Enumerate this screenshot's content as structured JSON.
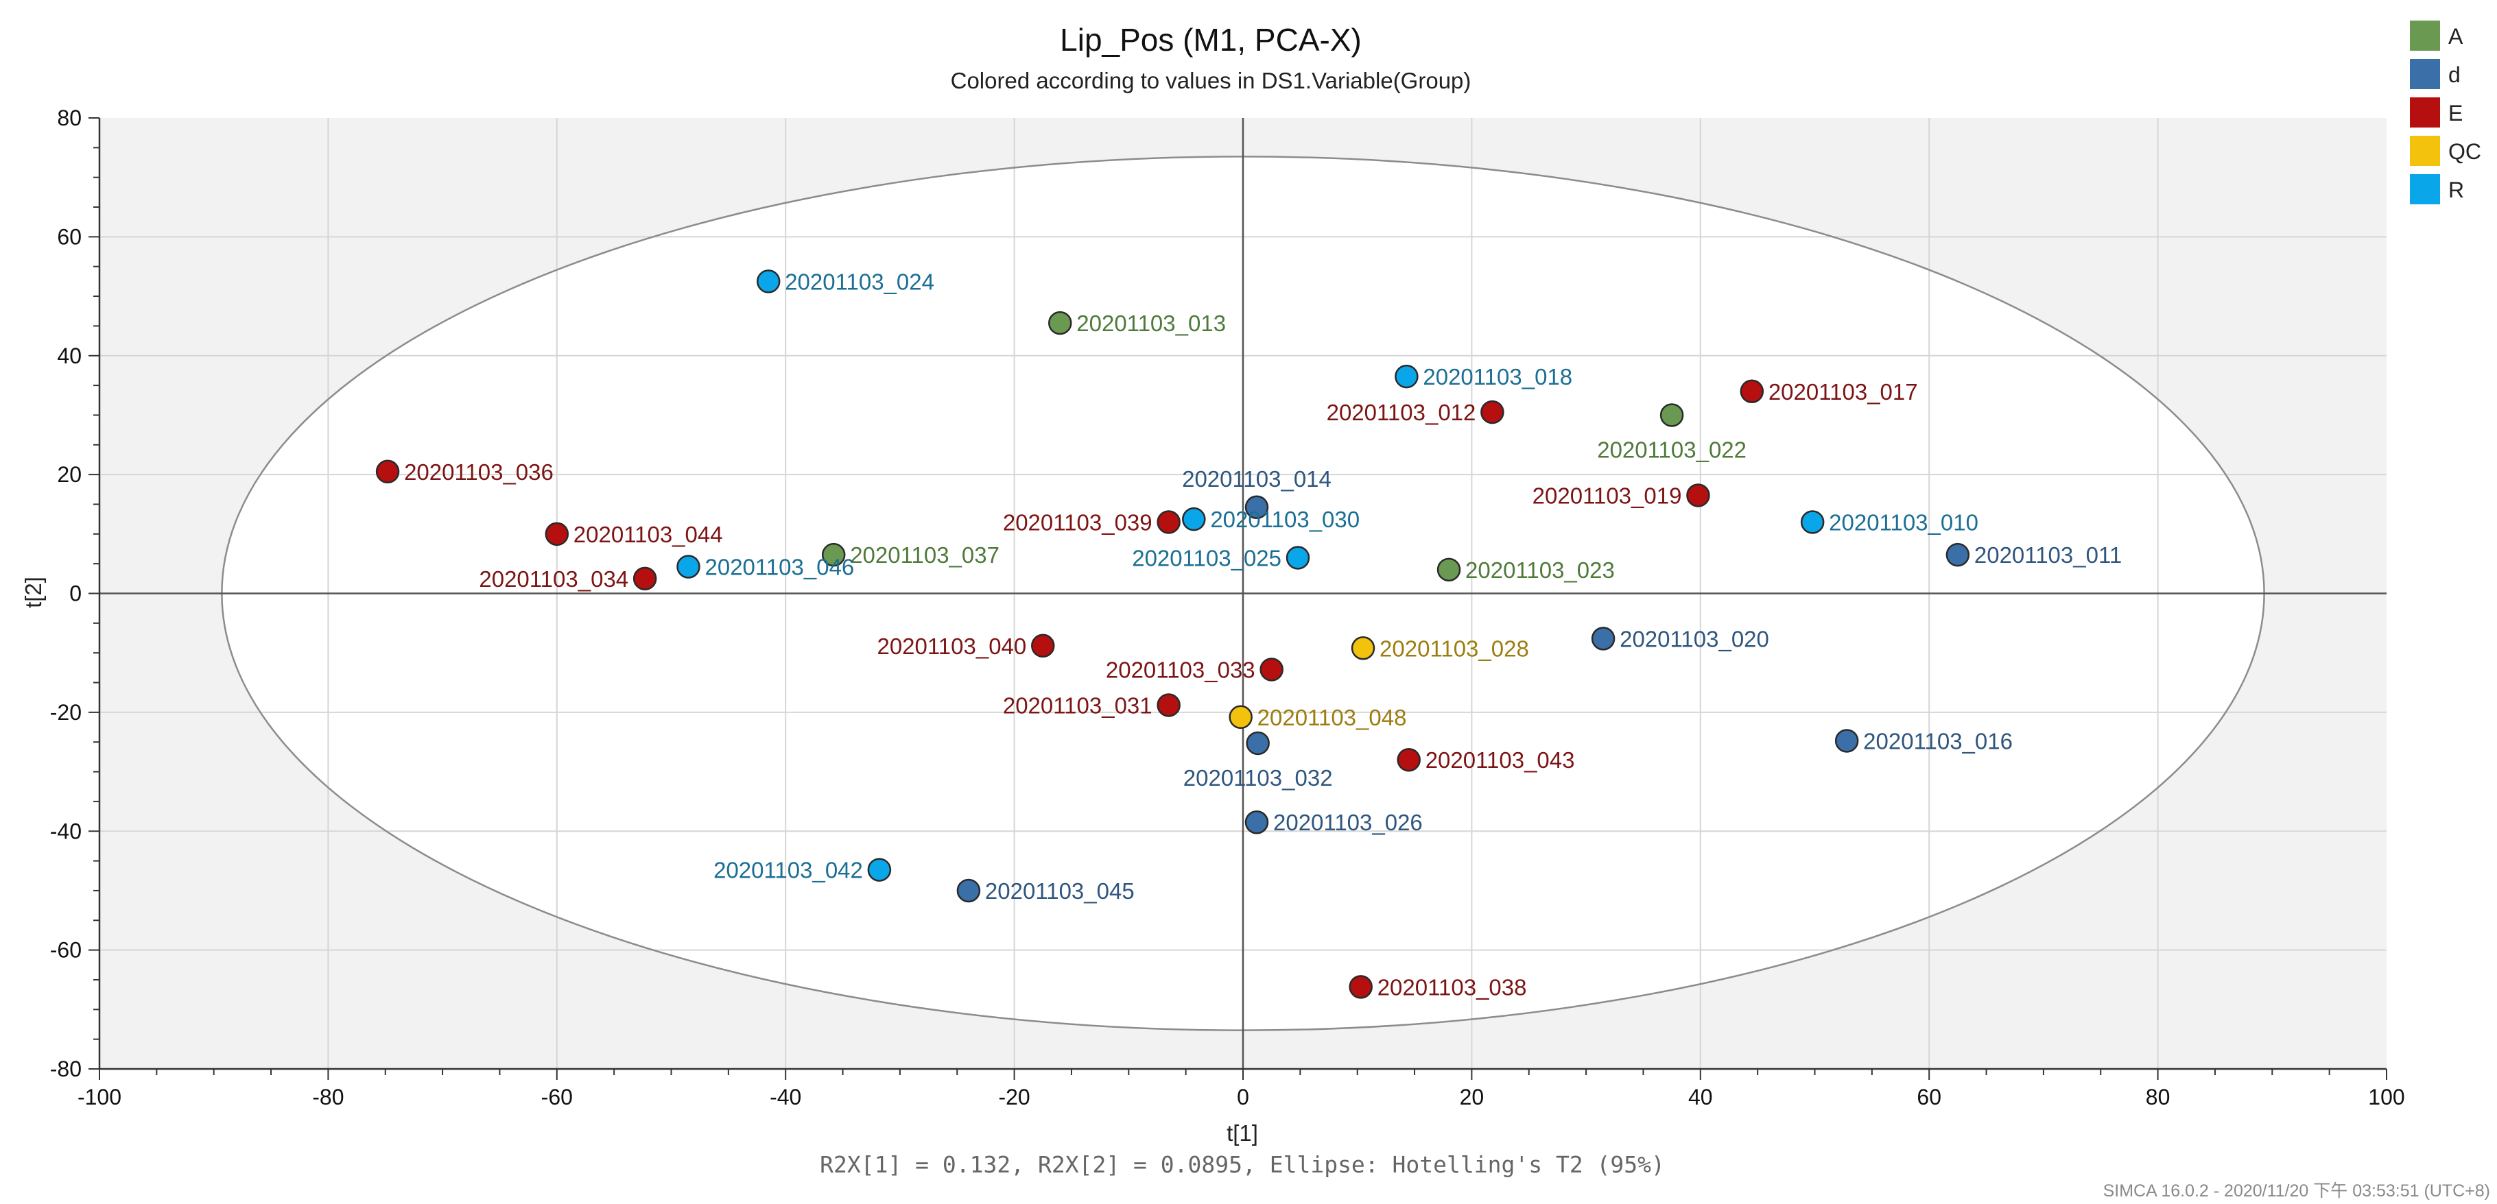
{
  "chart_data": {
    "type": "scatter",
    "title": "Lip_Pos (M1, PCA-X)",
    "subtitle": "Colored according to values in DS1.Variable(Group)",
    "xlabel": "t[1]",
    "ylabel": "t[2]",
    "xlim": [
      -100,
      100
    ],
    "ylim": [
      -80,
      80
    ],
    "xticks": [
      -100,
      -80,
      -60,
      -40,
      -20,
      0,
      20,
      40,
      60,
      80,
      100
    ],
    "yticks": [
      -80,
      -60,
      -40,
      -20,
      0,
      20,
      40,
      60,
      80
    ],
    "grid": true,
    "legend_position": "top-right",
    "ellipse": {
      "a": 89.3,
      "b": 73.5
    },
    "groups": [
      {
        "name": "A",
        "color": "#6a9a52",
        "text_color": "#4e7a3a"
      },
      {
        "name": "d",
        "color": "#3a6fa8",
        "text_color": "#2f567e"
      },
      {
        "name": "E",
        "color": "#b50f0f",
        "text_color": "#7d1414"
      },
      {
        "name": "QC",
        "color": "#f3c20c",
        "text_color": "#9c7d10"
      },
      {
        "name": "R",
        "color": "#0aa6ea",
        "text_color": "#1b6f94"
      }
    ],
    "points": [
      {
        "label": "20201103_024",
        "group": "R",
        "x": -41.5,
        "y": 52.5,
        "label_pos": "right"
      },
      {
        "label": "20201103_013",
        "group": "A",
        "x": -16.0,
        "y": 45.5,
        "label_pos": "right"
      },
      {
        "label": "20201103_018",
        "group": "R",
        "x": 14.3,
        "y": 36.5,
        "label_pos": "right"
      },
      {
        "label": "20201103_012",
        "group": "E",
        "x": 21.8,
        "y": 30.5,
        "label_pos": "left"
      },
      {
        "label": "20201103_022",
        "group": "A",
        "x": 37.5,
        "y": 30.0,
        "label_pos": "below"
      },
      {
        "label": "20201103_017",
        "group": "E",
        "x": 44.5,
        "y": 34.0,
        "label_pos": "right"
      },
      {
        "label": "20201103_036",
        "group": "E",
        "x": -74.8,
        "y": 20.5,
        "label_pos": "right"
      },
      {
        "label": "20201103_014",
        "group": "d",
        "x": 1.2,
        "y": 14.5,
        "label_pos": "above"
      },
      {
        "label": "20201103_019",
        "group": "E",
        "x": 39.8,
        "y": 16.5,
        "label_pos": "left"
      },
      {
        "label": "20201103_010",
        "group": "R",
        "x": 49.8,
        "y": 12.0,
        "label_pos": "right"
      },
      {
        "label": "20201103_044",
        "group": "E",
        "x": -60.0,
        "y": 10.0,
        "label_pos": "right"
      },
      {
        "label": "20201103_039",
        "group": "E",
        "x": -6.5,
        "y": 12.0,
        "label_pos": "left"
      },
      {
        "label": "20201103_030",
        "group": "R",
        "x": -4.3,
        "y": 12.5,
        "label_pos": "right"
      },
      {
        "label": "20201103_011",
        "group": "d",
        "x": 62.5,
        "y": 6.5,
        "label_pos": "right"
      },
      {
        "label": "20201103_037",
        "group": "A",
        "x": -35.8,
        "y": 6.5,
        "label_pos": "right"
      },
      {
        "label": "20201103_025",
        "group": "R",
        "x": 4.8,
        "y": 6.0,
        "label_pos": "left"
      },
      {
        "label": "20201103_046",
        "group": "R",
        "x": -48.5,
        "y": 4.5,
        "label_pos": "right"
      },
      {
        "label": "20201103_034",
        "group": "E",
        "x": -52.3,
        "y": 2.5,
        "label_pos": "left"
      },
      {
        "label": "20201103_023",
        "group": "A",
        "x": 18.0,
        "y": 4.0,
        "label_pos": "right"
      },
      {
        "label": "20201103_040",
        "group": "E",
        "x": -17.5,
        "y": -8.8,
        "label_pos": "left"
      },
      {
        "label": "20201103_028",
        "group": "QC",
        "x": 10.5,
        "y": -9.2,
        "label_pos": "right"
      },
      {
        "label": "20201103_020",
        "group": "d",
        "x": 31.5,
        "y": -7.6,
        "label_pos": "right"
      },
      {
        "label": "20201103_033",
        "group": "E",
        "x": 2.5,
        "y": -12.8,
        "label_pos": "left"
      },
      {
        "label": "20201103_031",
        "group": "E",
        "x": -6.5,
        "y": -18.8,
        "label_pos": "left"
      },
      {
        "label": "20201103_048",
        "group": "QC",
        "x": -0.2,
        "y": -20.8,
        "label_pos": "right"
      },
      {
        "label": "20201103_032",
        "group": "d",
        "x": 1.3,
        "y": -25.2,
        "label_pos": "below"
      },
      {
        "label": "20201103_016",
        "group": "d",
        "x": 52.8,
        "y": -24.8,
        "label_pos": "right"
      },
      {
        "label": "20201103_043",
        "group": "E",
        "x": 14.5,
        "y": -28.0,
        "label_pos": "right"
      },
      {
        "label": "20201103_026",
        "group": "d",
        "x": 1.2,
        "y": -38.5,
        "label_pos": "right"
      },
      {
        "label": "20201103_042",
        "group": "R",
        "x": -31.8,
        "y": -46.5,
        "label_pos": "left"
      },
      {
        "label": "20201103_045",
        "group": "d",
        "x": -24.0,
        "y": -50.0,
        "label_pos": "right"
      },
      {
        "label": "20201103_038",
        "group": "E",
        "x": 10.3,
        "y": -66.2,
        "label_pos": "right"
      }
    ],
    "footer": "R2X[1] = 0.132, R2X[2] = 0.0895, Ellipse: Hotelling's T2 (95%)",
    "stamp": "SIMCA 16.0.2 - 2020/11/20 下午 03:53:51 (UTC+8)"
  }
}
